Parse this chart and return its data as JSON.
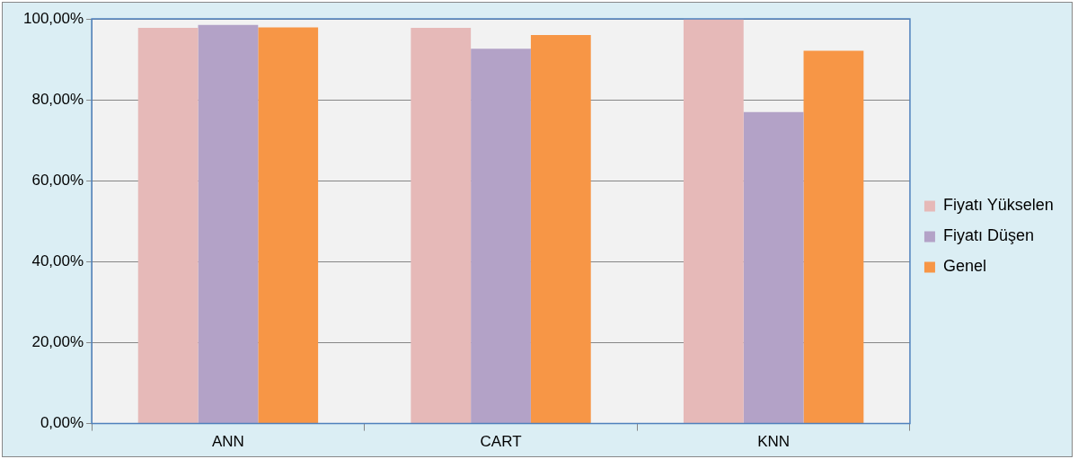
{
  "chart_data": {
    "type": "bar",
    "categories": [
      "ANN",
      "CART",
      "KNN"
    ],
    "series": [
      {
        "name": "Fiyatı Yükselen",
        "color": "#e6b9b8",
        "values": [
          97.8,
          97.8,
          100
        ]
      },
      {
        "name": "Fiyatı Düşen",
        "color": "#b3a2c7",
        "values": [
          98.5,
          92.6,
          77.0
        ]
      },
      {
        "name": "Genel",
        "color": "#f79646",
        "values": [
          97.9,
          96.0,
          92.1
        ]
      }
    ],
    "ylim": [
      0,
      100
    ],
    "yticks": [
      {
        "value": 0,
        "label": "0,00%"
      },
      {
        "value": 20,
        "label": "20,00%"
      },
      {
        "value": 40,
        "label": "40,00%"
      },
      {
        "value": 60,
        "label": "60,00%"
      },
      {
        "value": 80,
        "label": "80,00%"
      },
      {
        "value": 100,
        "label": "100,00%"
      }
    ],
    "grid": "y",
    "legend": "right"
  }
}
